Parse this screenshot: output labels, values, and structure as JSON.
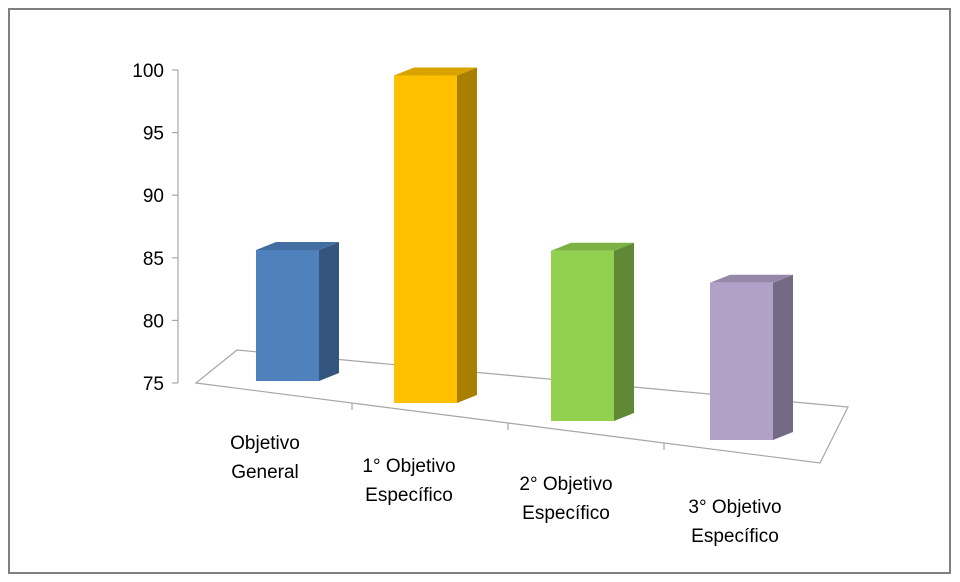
{
  "chart_data": {
    "type": "bar",
    "categories": [
      [
        "Objetivo",
        "General"
      ],
      [
        "1° Objetivo",
        "Específico"
      ],
      [
        "2° Objetivo",
        "Específico"
      ],
      [
        "3° Objetivo",
        "Específico"
      ]
    ],
    "values": [
      85,
      100,
      88,
      87
    ],
    "yticks": [
      "100",
      "95",
      "90",
      "85",
      "80",
      "75"
    ],
    "ylim": [
      75,
      100
    ],
    "colors": [
      "#4f81bd",
      "#ffc000",
      "#92d050",
      "#b1a0c7"
    ],
    "grid": false,
    "legend": false
  }
}
